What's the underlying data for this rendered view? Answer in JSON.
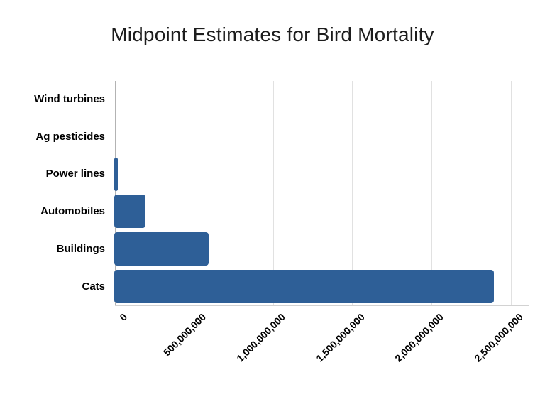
{
  "page": {
    "background": "#ffffff"
  },
  "colors": {
    "bar": "#2e5f97",
    "axis_line": "#b3b3b3",
    "gridline": "#e1e1e1",
    "baseline": "#d2d2d2",
    "title_text": "#1d1d1d",
    "label_text": "#000000",
    "background": "#ffffff"
  },
  "chart_data": {
    "type": "bar",
    "orientation": "horizontal",
    "title": "Midpoint Estimates for Bird Mortality",
    "categories": [
      "Wind turbines",
      "Ag pesticides",
      "Power lines",
      "Automobiles",
      "Buildings",
      "Cats"
    ],
    "values": [
      0,
      0,
      25000000,
      200000000,
      600000000,
      2400000000
    ],
    "x_ticks": [
      "0",
      "500,000,000",
      "1,000,000,000",
      "1,500,000,000",
      "2,000,000,000",
      "2,500,000,000"
    ],
    "x_tick_values": [
      0,
      500000000,
      1000000000,
      1500000000,
      2000000000,
      2500000000
    ],
    "xlim": [
      0,
      2500000000
    ],
    "xlabel": "",
    "ylabel": "",
    "grid": true,
    "legend": false,
    "gridlines_vertical": true,
    "tick_label_rotation_deg": -45
  }
}
